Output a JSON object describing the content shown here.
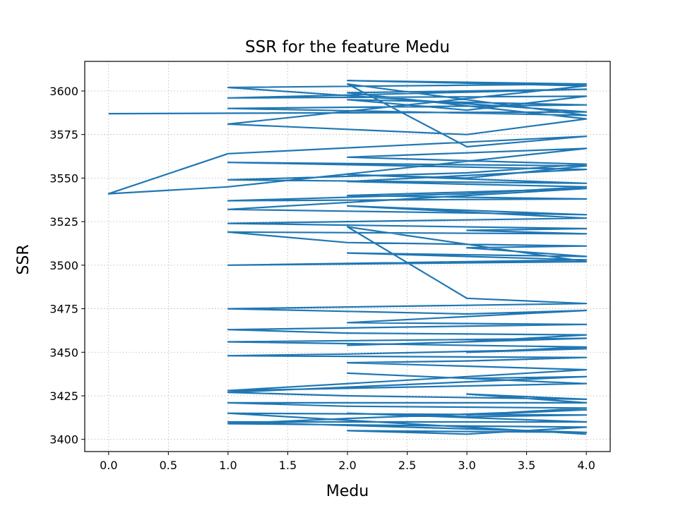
{
  "chart_data": {
    "type": "line",
    "title": "SSR for the feature Medu",
    "xlabel": "Medu",
    "ylabel": "SSR",
    "xlim": [
      -0.2,
      4.2
    ],
    "ylim": [
      3393,
      3617
    ],
    "grid": true,
    "grid_style": "dotted",
    "line_color": "#1f77b4",
    "x_ticks": [
      0.0,
      0.5,
      1.0,
      1.5,
      2.0,
      2.5,
      3.0,
      3.5,
      4.0
    ],
    "x_tick_labels": [
      "0.0",
      "0.5",
      "1.0",
      "1.5",
      "2.0",
      "2.5",
      "3.0",
      "3.5",
      "4.0"
    ],
    "y_ticks": [
      3400,
      3425,
      3450,
      3475,
      3500,
      3525,
      3550,
      3575,
      3600
    ],
    "y_tick_labels": [
      "3400",
      "3425",
      "3450",
      "3475",
      "3500",
      "3525",
      "3550",
      "3575",
      "3600"
    ],
    "series": [
      {
        "x": [
          0,
          4,
          1,
          4,
          2,
          4,
          1,
          3,
          4,
          2,
          4,
          1,
          4,
          3,
          2,
          4,
          1,
          4,
          2,
          3,
          4,
          1,
          0,
          1,
          4,
          2,
          4,
          3,
          1,
          4,
          2,
          3,
          4,
          1,
          4,
          2,
          4,
          3,
          1,
          4,
          2,
          4,
          1,
          3,
          4,
          2,
          4,
          1,
          2,
          4,
          3,
          4,
          1,
          2,
          4,
          3,
          4,
          2,
          4,
          1,
          4,
          2,
          3,
          4,
          1,
          3,
          4,
          2,
          4,
          1,
          2,
          4,
          3,
          2,
          4,
          1,
          4,
          3,
          4,
          2,
          1,
          4,
          3,
          2,
          4,
          1,
          4,
          2,
          3,
          4,
          1,
          2,
          4,
          3,
          4,
          1,
          2,
          4,
          3,
          4,
          2,
          1,
          4,
          3,
          2,
          4,
          1,
          4,
          2,
          3,
          4,
          1,
          4
        ],
        "y": [
          3587,
          3588,
          3602,
          3604,
          3606,
          3603,
          3581,
          3575,
          3584,
          3599,
          3601,
          3596,
          3597,
          3589,
          3595,
          3592,
          3590,
          3586,
          3604,
          3568,
          3574,
          3564,
          3541,
          3545,
          3567,
          3562,
          3558,
          3553,
          3549,
          3547,
          3552,
          3550,
          3557,
          3559,
          3555,
          3548,
          3545,
          3541,
          3537,
          3538,
          3540,
          3544,
          3532,
          3530,
          3529,
          3534,
          3527,
          3524,
          3523,
          3521,
          3520,
          3518,
          3519,
          3513,
          3511,
          3510,
          3505,
          3507,
          3503,
          3500,
          3502,
          3522,
          3481,
          3478,
          3475,
          3472,
          3474,
          3467,
          3466,
          3463,
          3461,
          3460,
          3456,
          3454,
          3458,
          3456,
          3453,
          3450,
          3452,
          3449,
          3448,
          3447,
          3445,
          3444,
          3440,
          3428,
          3432,
          3438,
          3435,
          3436,
          3427,
          3425,
          3423,
          3426,
          3421,
          3421,
          3419,
          3418,
          3414,
          3417,
          3412,
          3409,
          3407,
          3403,
          3405,
          3404,
          3410,
          3410,
          3415,
          3413,
          3414,
          3415,
          3403
        ]
      }
    ]
  }
}
